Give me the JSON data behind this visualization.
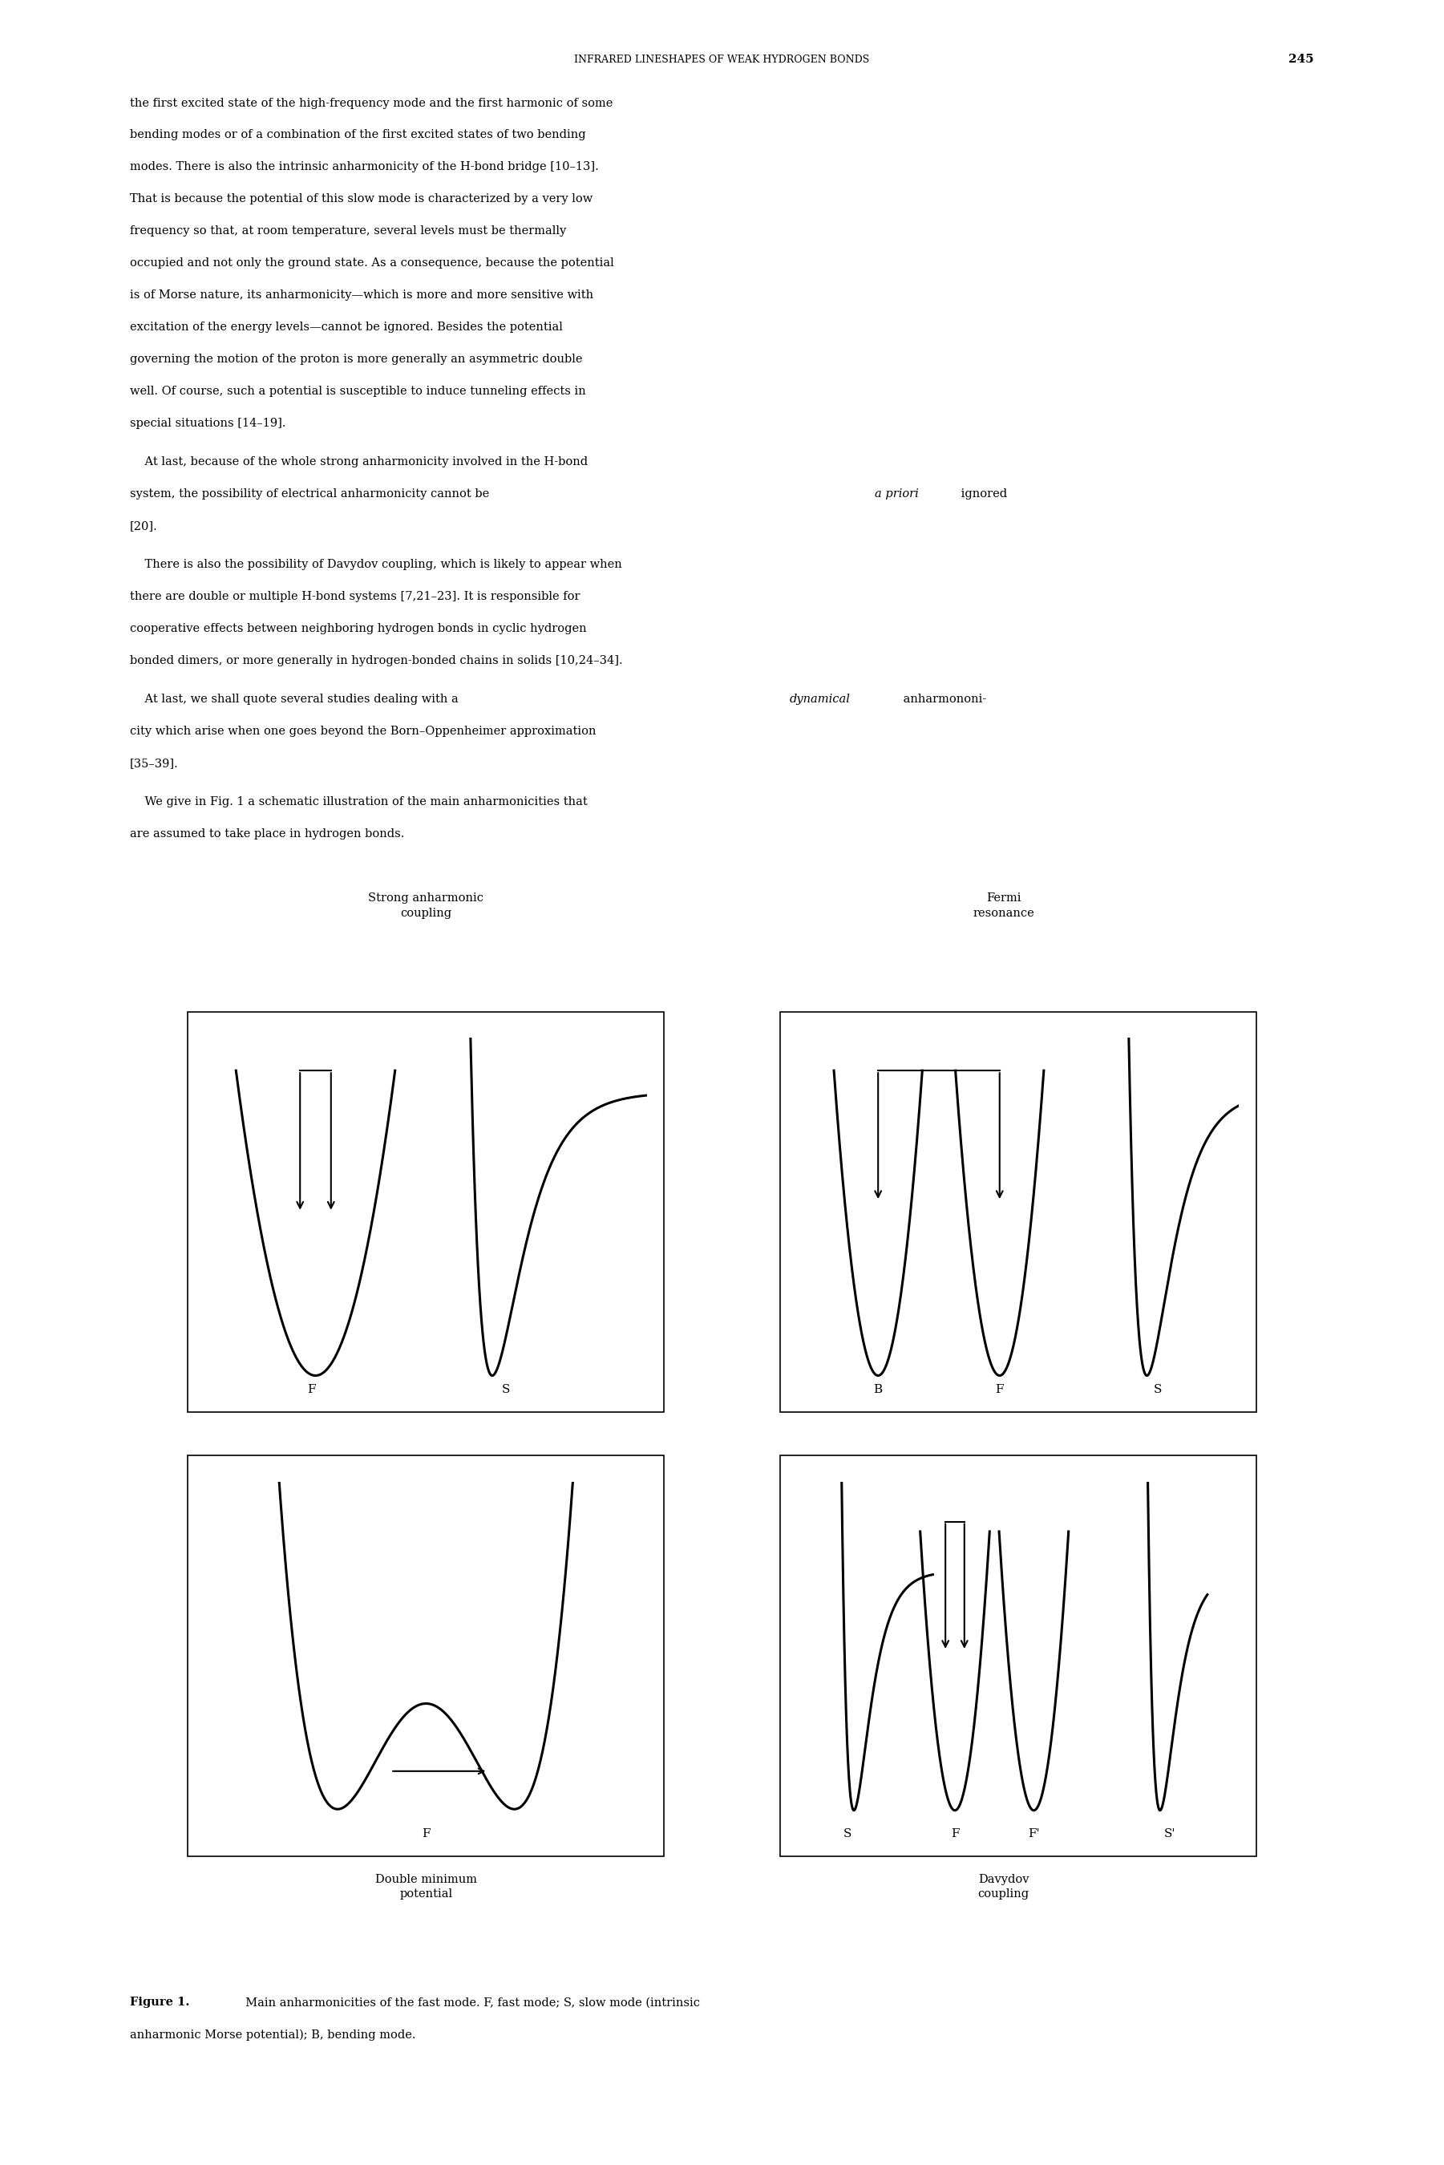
{
  "page_width": 18.01,
  "page_height": 27.0,
  "background_color": "#ffffff",
  "text_color": "#000000",
  "header_text": "INFRARED LINESHAPES OF WEAK HYDROGEN BONDS",
  "header_page": "245",
  "paragraph1": "the first excited state of the high-frequency mode and the first harmonic of some\nbending modes or of a combination of the first excited states of two bending\nmodes. There is also the intrinsic anharmonicity of the H-bond bridge [10–13].\nThat is because the potential of this slow mode is characterized by a very low\nfrequency so that, at room temperature, several levels must be thermally\noccupied and not only the ground state. As a consequence, because the potential\nis of Morse nature, its anharmonicity—which is more and more sensitive with\nexcitation of the energy levels—cannot be ignored. Besides the potential\ngoverning the motion of the proton is more generally an asymmetric double\nwell. Of course, such a potential is susceptible to induce tunneling effects in\nspecial situations [14–19].",
  "paragraph2": "    At last, because of the whole strong anharmonicity involved in the H-bond\nsystem, the possibility of electrical anharmonicity cannot be ​a priori​ ignored\n[20].",
  "paragraph3": "    There is also the possibility of Davydov coupling, which is likely to appear when\nthere are double or multiple H-bond systems [7,21–23]. It is responsible for\ncooperative effects between neighboring hydrogen bonds in cyclic hydrogen\nbonded dimers, or more generally in hydrogen-bonded chains in solids [10,24–34].",
  "paragraph4": "    At last, we shall quote several studies dealing with a dynamical anharmoni-\ncity which arise when one goes beyond the Born–Oppenheimer approximation\n[35–39].",
  "paragraph5": "    We give in Fig. 1 a schematic illustration of the main anharmonicities that\nare assumed to take place in hydrogen bonds.",
  "fig_caption_bold": "Figure 1.",
  "fig_caption_rest": "  Main anharmonicities of the fast mode. F, fast mode; S, slow mode (intrinsic\nanharmonic Morse potential); B, bending mode.",
  "panel_labels": {
    "top_left_title": "Strong anharmonic\ncoupling",
    "top_right_title": "Fermi\nresonance",
    "bottom_left_title": "Double minimum\npotential",
    "bottom_right_title": "Davydov\ncoupling"
  },
  "panel_axis_labels": {
    "top_left": [
      "F",
      "S"
    ],
    "top_right": [
      "B",
      "F",
      "S"
    ],
    "bottom_left": [
      "F"
    ],
    "bottom_right": [
      "S",
      "F",
      "F'",
      "S'"
    ]
  }
}
